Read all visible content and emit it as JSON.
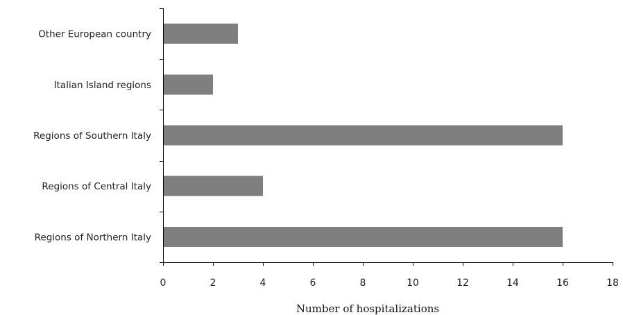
{
  "chart_data": {
    "type": "bar",
    "orientation": "horizontal",
    "categories": [
      "Other European country",
      "Italian Island regions",
      "Regions of Southern Italy",
      "Regions of Central Italy",
      "Regions of Northern Italy"
    ],
    "values": [
      3,
      2,
      16,
      4,
      16
    ],
    "xlabel": "Number of hospitalizations",
    "ylabel": "",
    "title": "",
    "xlim": [
      0,
      18
    ],
    "xticks": [
      0,
      2,
      4,
      6,
      8,
      10,
      12,
      14,
      16,
      18
    ],
    "grid": false,
    "legend": "none",
    "bar_color": "#7f7f7f"
  }
}
